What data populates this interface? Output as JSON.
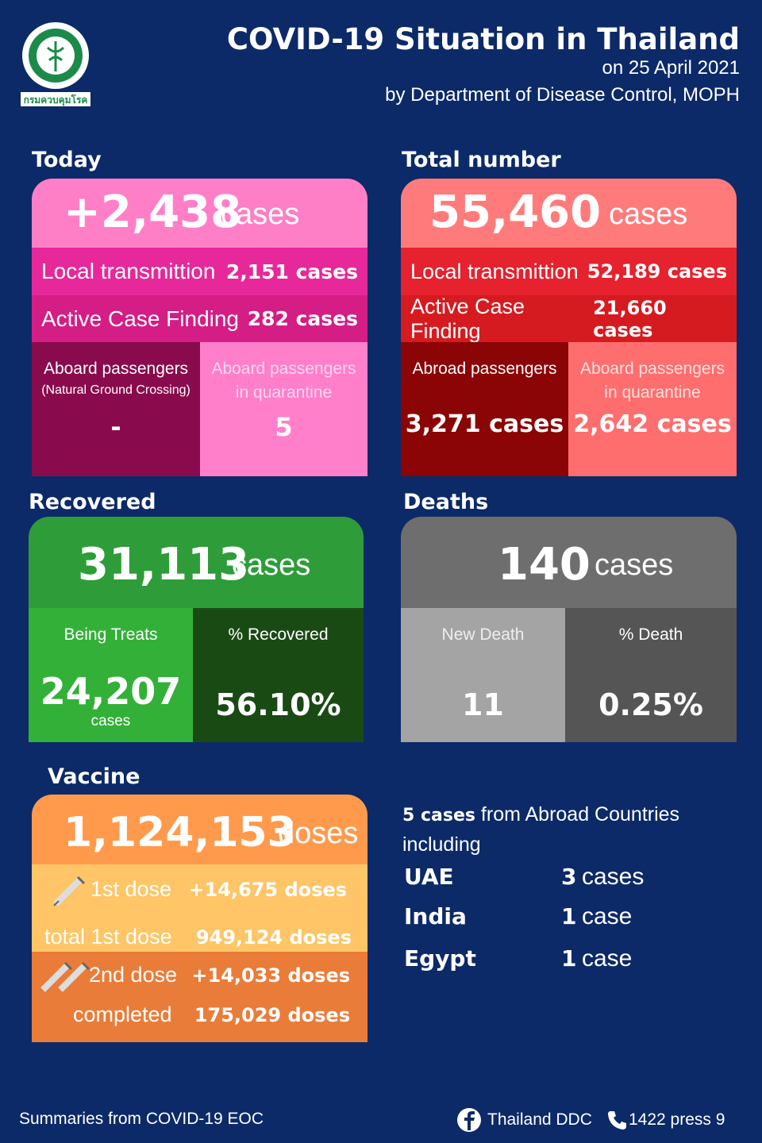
{
  "header": {
    "logo_label": "กรมควบคุมโรค",
    "title": "COVID-19 Situation in Thailand",
    "date": "on  25 April 2021",
    "source": "by Department of Disease Control, MOPH"
  },
  "today": {
    "heading": "Today",
    "total": "+2,438",
    "unit": "cases",
    "local_label": "Local transmittion",
    "local_value": "2,151 cases",
    "acf_label": "Active Case Finding",
    "acf_value": "282 cases",
    "abroad_label": "Aboard passengers",
    "abroad_sub": "(Natural Ground Crossing)",
    "abroad_value": "-",
    "quarantine_label": "Aboard passengers",
    "quarantine_sub": "in quarantine",
    "quarantine_value": "5"
  },
  "total": {
    "heading": "Total number",
    "total": "55,460",
    "unit": "cases",
    "local_label": "Local transmittion",
    "local_value": "52,189 cases",
    "acf_label": "Active Case Finding",
    "acf_value": "21,660 cases",
    "abroad_label": "Abroad passengers",
    "abroad_value": "3,271 cases",
    "quarantine_label": "Aboard passengers",
    "quarantine_sub": "in quarantine",
    "quarantine_value": "2,642 cases"
  },
  "recovered": {
    "heading": "Recovered",
    "total": "31,113",
    "unit": "cases",
    "treating_label": "Being Treats",
    "treating_value": "24,207",
    "treating_unit": "cases",
    "pct_label": "% Recovered",
    "pct_value": "56.10%"
  },
  "deaths": {
    "heading": "Deaths",
    "total": "140",
    "unit": "cases",
    "new_label": "New Death",
    "new_value": "11",
    "pct_label": "% Death",
    "pct_value": "0.25%"
  },
  "vaccine": {
    "heading": "Vaccine",
    "total": "1,124,153",
    "unit": "doses",
    "first_label": "1st dose",
    "first_value": "+14,675 doses",
    "first_total_label": "total 1st dose",
    "first_total_value": "949,124 doses",
    "second_label": "2nd dose",
    "second_value": "+14,033 doses",
    "completed_label": "completed",
    "completed_value": "175,029 doses"
  },
  "abroad": {
    "headline": "5 cases",
    "text": "from Abroad Countries including",
    "rows": [
      [
        "UAE",
        "3",
        "cases"
      ],
      [
        "India",
        "1",
        "case"
      ],
      [
        "Egypt",
        "1",
        "case"
      ]
    ]
  },
  "footer": {
    "source": "Summaries  from COVID-19 EOC",
    "facebook": "Thailand DDC",
    "phone": "1422 press 9"
  }
}
